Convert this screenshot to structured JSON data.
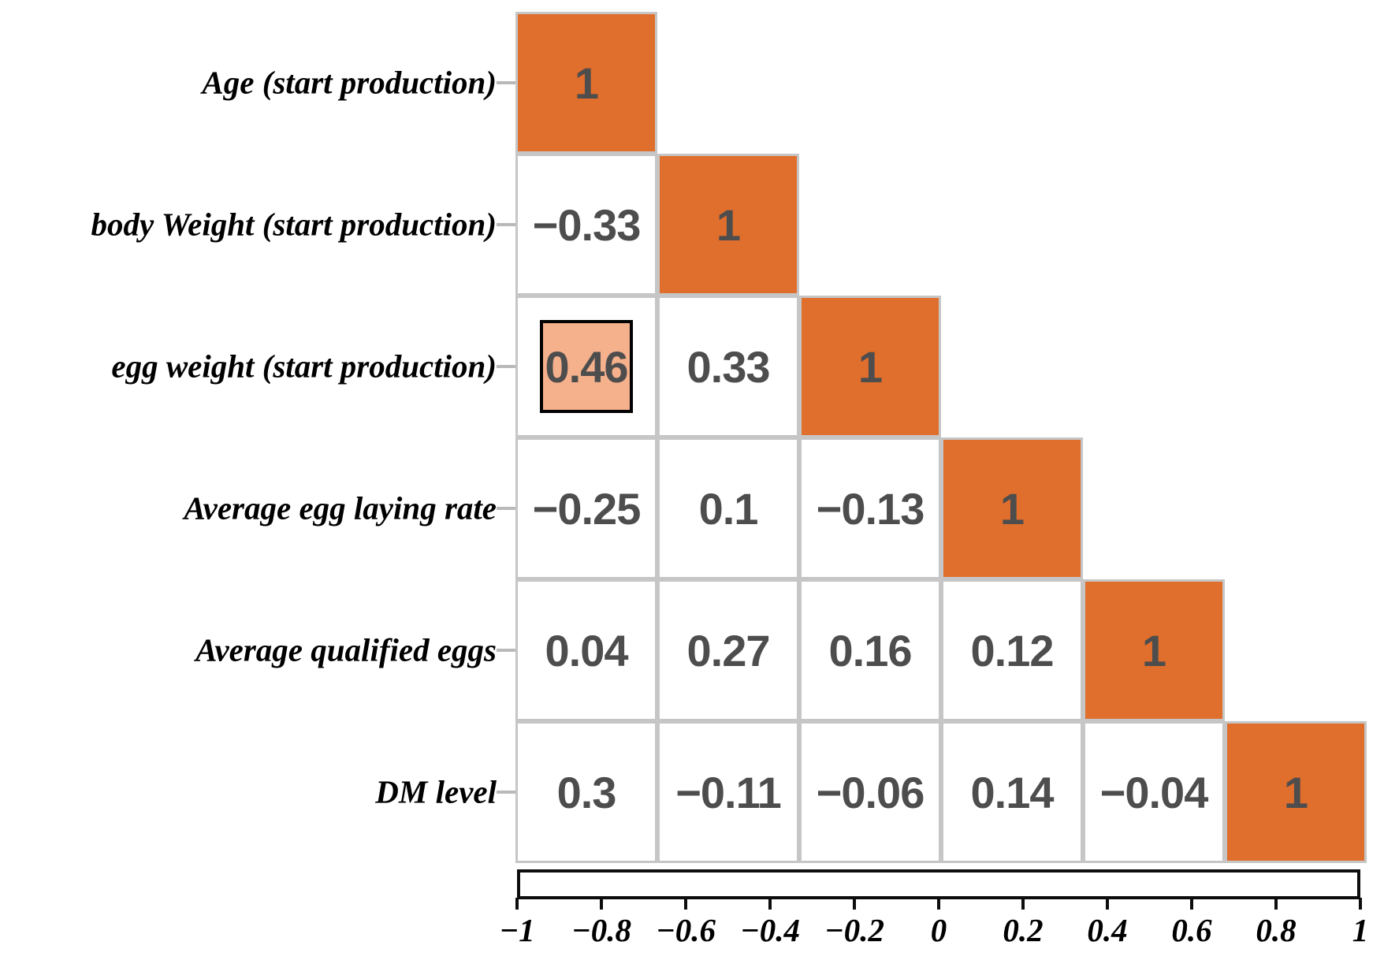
{
  "chart_data": {
    "type": "heatmap",
    "subtype": "correlation-matrix-lower-triangle",
    "variables": [
      "Age (start production)",
      "body Weight (start production)",
      "egg weight (start production)",
      "Average egg laying rate",
      "Average qualified eggs",
      "DM level"
    ],
    "matrix_lower_triangle": [
      [
        1
      ],
      [
        -0.33,
        1
      ],
      [
        0.46,
        0.33,
        1
      ],
      [
        -0.25,
        0.1,
        -0.13,
        1
      ],
      [
        0.04,
        0.27,
        0.16,
        0.12,
        1
      ],
      [
        0.3,
        -0.11,
        -0.06,
        0.14,
        -0.04,
        1
      ]
    ],
    "cells": [
      {
        "row": 0,
        "col": 0,
        "display": "1",
        "diagonal": true,
        "highlighted": false
      },
      {
        "row": 1,
        "col": 0,
        "display": "−0.33",
        "diagonal": false,
        "highlighted": false
      },
      {
        "row": 1,
        "col": 1,
        "display": "1",
        "diagonal": true,
        "highlighted": false
      },
      {
        "row": 2,
        "col": 0,
        "display": "0.46",
        "diagonal": false,
        "highlighted": true
      },
      {
        "row": 2,
        "col": 1,
        "display": "0.33",
        "diagonal": false,
        "highlighted": false
      },
      {
        "row": 2,
        "col": 2,
        "display": "1",
        "diagonal": true,
        "highlighted": false
      },
      {
        "row": 3,
        "col": 0,
        "display": "−0.25",
        "diagonal": false,
        "highlighted": false
      },
      {
        "row": 3,
        "col": 1,
        "display": "0.1",
        "diagonal": false,
        "highlighted": false
      },
      {
        "row": 3,
        "col": 2,
        "display": "−0.13",
        "diagonal": false,
        "highlighted": false
      },
      {
        "row": 3,
        "col": 3,
        "display": "1",
        "diagonal": true,
        "highlighted": false
      },
      {
        "row": 4,
        "col": 0,
        "display": "0.04",
        "diagonal": false,
        "highlighted": false
      },
      {
        "row": 4,
        "col": 1,
        "display": "0.27",
        "diagonal": false,
        "highlighted": false
      },
      {
        "row": 4,
        "col": 2,
        "display": "0.16",
        "diagonal": false,
        "highlighted": false
      },
      {
        "row": 4,
        "col": 3,
        "display": "0.12",
        "diagonal": false,
        "highlighted": false
      },
      {
        "row": 4,
        "col": 4,
        "display": "1",
        "diagonal": true,
        "highlighted": false
      },
      {
        "row": 5,
        "col": 0,
        "display": "0.3",
        "diagonal": false,
        "highlighted": false
      },
      {
        "row": 5,
        "col": 1,
        "display": "−0.11",
        "diagonal": false,
        "highlighted": false
      },
      {
        "row": 5,
        "col": 2,
        "display": "−0.06",
        "diagonal": false,
        "highlighted": false
      },
      {
        "row": 5,
        "col": 3,
        "display": "0.14",
        "diagonal": false,
        "highlighted": false
      },
      {
        "row": 5,
        "col": 4,
        "display": "−0.04",
        "diagonal": false,
        "highlighted": false
      },
      {
        "row": 5,
        "col": 5,
        "display": "1",
        "diagonal": true,
        "highlighted": false
      }
    ],
    "highlighted_cell": {
      "row_variable": "egg weight (start production)",
      "col_variable": "Age (start production)",
      "value": 0.46
    },
    "colorbar": {
      "min": -1,
      "max": 1,
      "tick_labels": [
        "−1",
        "−0.8",
        "−0.6",
        "−0.4",
        "−0.2",
        "0",
        "0.2",
        "0.4",
        "0.6",
        "0.8",
        "1"
      ],
      "legend_position": "bottom"
    },
    "colors": {
      "diagonal_fill": "#e06e2c",
      "highlight_fill": "#f5b08c",
      "highlight_border": "#000000",
      "negative_end": "#6b99c3",
      "midpoint": "#ffffff",
      "positive_end": "#e06e2c",
      "grid_line": "#c6c6c6",
      "value_text": "#4d4d4d",
      "label_text": "#000000"
    },
    "grid": true,
    "title": "",
    "xlabel": "",
    "ylabel": ""
  }
}
